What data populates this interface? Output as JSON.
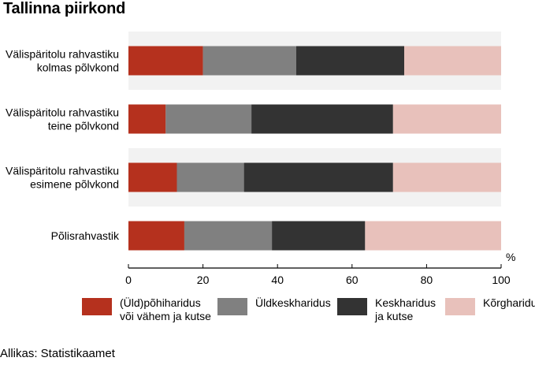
{
  "title": "Tallinna piirkond",
  "source": "Allikas: Statistikaamet",
  "chart_data": {
    "type": "bar",
    "orientation": "horizontal",
    "stacked": true,
    "categories": [
      "Välispäritolu rahvastiku\nkolmas põlvkond",
      "Välispäritolu rahvastiku\nteine põlvkond",
      "Välispäritolu rahvastiku\nesimene põlvkond",
      "Põlisrahvastik"
    ],
    "series": [
      {
        "name": "(Üld)põhiharidus\nvõi vähem ja kutse",
        "color": "#b5311e",
        "values": [
          20,
          10,
          13,
          15
        ]
      },
      {
        "name": "Üldkeskharidus",
        "color": "#808080",
        "values": [
          25,
          23,
          18,
          23.5
        ]
      },
      {
        "name": "Keskharidus\nja kutse",
        "color": "#333333",
        "values": [
          29,
          38,
          40,
          25
        ]
      },
      {
        "name": "Kõrgharidus",
        "color": "#e8c1bb",
        "values": [
          26,
          29,
          29,
          36.5
        ]
      }
    ],
    "xlim": [
      0,
      100
    ],
    "xticks": [
      "0",
      "20",
      "40",
      "60",
      "80",
      "100"
    ],
    "xunit": "%",
    "legend_position": "bottom",
    "band_colors": [
      "#f2f2f2",
      "#ffffff"
    ]
  }
}
